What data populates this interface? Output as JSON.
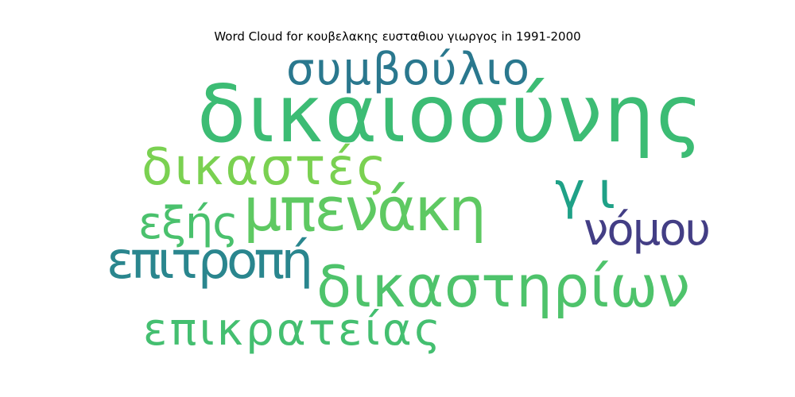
{
  "chart_data": {
    "type": "wordcloud",
    "title": "Word Cloud for κουβελακης ευσταθιου γιωργος in 1991-2000",
    "words": [
      {
        "text": "δικαιοσύνης",
        "weight": 1.0,
        "color": "#3cbc74"
      },
      {
        "text": "συμβούλιο",
        "weight": 0.58,
        "color": "#2a788e"
      },
      {
        "text": "μπενάκη",
        "weight": 0.64,
        "color": "#5ec962"
      },
      {
        "text": "δικαστηρίων",
        "weight": 0.6,
        "color": "#4ec36b"
      },
      {
        "text": "δικαστές",
        "weight": 0.56,
        "color": "#7ad151"
      },
      {
        "text": "επιτροπή",
        "weight": 0.55,
        "color": "#2a868e"
      },
      {
        "text": "επικρατείας",
        "weight": 0.52,
        "color": "#44bf70"
      },
      {
        "text": "γι",
        "weight": 0.52,
        "color": "#1fa187"
      },
      {
        "text": "εξής",
        "weight": 0.46,
        "color": "#4ac16d"
      },
      {
        "text": "νόμου",
        "weight": 0.48,
        "color": "#433e85"
      }
    ]
  }
}
